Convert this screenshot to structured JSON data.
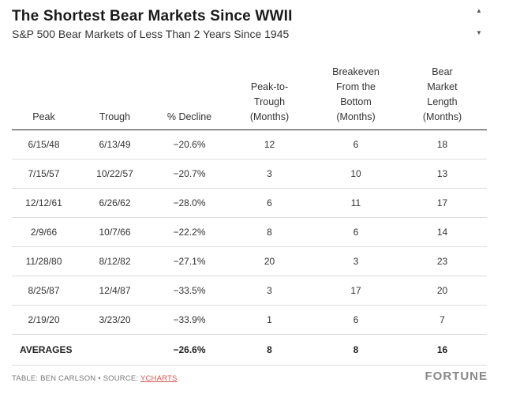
{
  "header": {
    "title": "The Shortest Bear Markets Since WWII",
    "subtitle": "S&P 500 Bear Markets of Less Than 2 Years Since 1945"
  },
  "table": {
    "columns": [
      {
        "lines": [
          "Peak"
        ]
      },
      {
        "lines": [
          "Trough"
        ]
      },
      {
        "lines": [
          "% Decline"
        ]
      },
      {
        "lines": [
          "Peak-to-",
          "Trough",
          "(Months)"
        ]
      },
      {
        "lines": [
          "Breakeven",
          "From the",
          "Bottom",
          "(Months)"
        ]
      },
      {
        "lines": [
          "Bear",
          "Market",
          "Length",
          "(Months)"
        ]
      }
    ],
    "rows": [
      [
        "6/15/48",
        "6/13/49",
        "−20.6%",
        "12",
        "6",
        "18"
      ],
      [
        "7/15/57",
        "10/22/57",
        "−20.7%",
        "3",
        "10",
        "13"
      ],
      [
        "12/12/61",
        "6/26/62",
        "−28.0%",
        "6",
        "11",
        "17"
      ],
      [
        "2/9/66",
        "10/7/66",
        "−22.2%",
        "8",
        "6",
        "14"
      ],
      [
        "11/28/80",
        "8/12/82",
        "−27.1%",
        "20",
        "3",
        "23"
      ],
      [
        "8/25/87",
        "12/4/87",
        "−33.5%",
        "3",
        "17",
        "20"
      ],
      [
        "2/19/20",
        "3/23/20",
        "−33.9%",
        "1",
        "6",
        "7"
      ]
    ],
    "averages": {
      "label": "AVERAGES",
      "decline": "−26.6%",
      "peak_to_trough": "8",
      "breakeven": "8",
      "length": "16"
    }
  },
  "footer": {
    "source_prefix": "TABLE: BEN CARLSON • SOURCE: ",
    "source_link": "YCHARTS",
    "brand": "FORTUNE"
  },
  "icons": {
    "scroll_up": "scroll-up-arrow-icon",
    "scroll_down": "scroll-down-arrow-icon"
  }
}
